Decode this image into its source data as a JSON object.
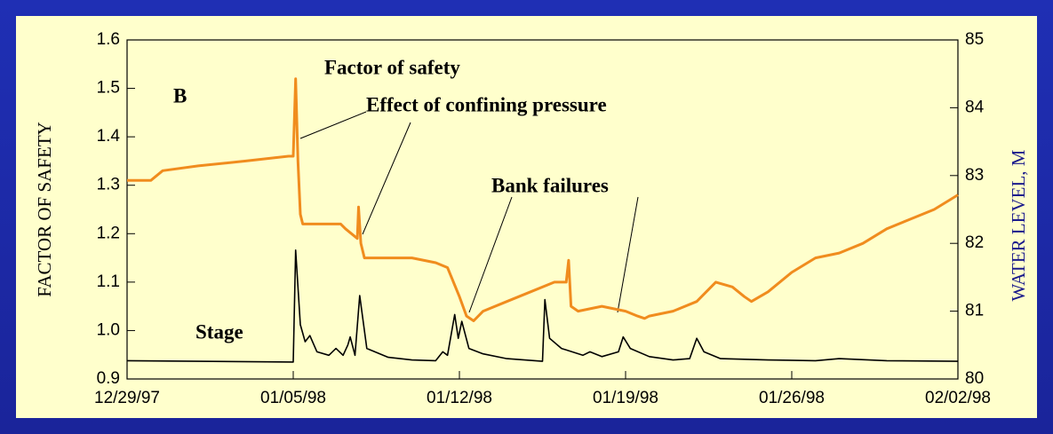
{
  "chart_data": {
    "type": "line",
    "y_label": "FACTOR OF SAFETY",
    "y2_label": "WATER LEVEL, M",
    "annotations": [
      "B",
      "Factor of safety",
      "Effect of confining pressure",
      "Bank failures",
      "Stage"
    ],
    "xlim": [
      0,
      35
    ],
    "xticks": [
      {
        "value": 0,
        "label": "12/29/97"
      },
      {
        "value": 7,
        "label": "01/05/98"
      },
      {
        "value": 14,
        "label": "01/12/98"
      },
      {
        "value": 21,
        "label": "01/19/98"
      },
      {
        "value": 28,
        "label": "01/26/98"
      },
      {
        "value": 35,
        "label": "02/02/98"
      }
    ],
    "ylim": [
      0.9,
      1.6
    ],
    "yticks": [
      {
        "value": 0.9,
        "label": "0.9"
      },
      {
        "value": 1.0,
        "label": "1.0"
      },
      1.1,
      1.2,
      1.3,
      1.4,
      1.5,
      1.6
    ],
    "y2lim": [
      80,
      85
    ],
    "y2ticks": [
      80,
      81,
      82,
      83,
      84,
      85
    ],
    "series": [
      {
        "name": "Factor of safety",
        "color": "#f08c1e",
        "x": [
          0,
          1,
          1.5,
          3,
          5,
          6.8,
          7.0,
          7.1,
          7.2,
          7.3,
          7.4,
          9,
          9.2,
          9.7,
          9.75,
          9.85,
          10,
          12,
          13,
          13.5,
          14.0,
          14.3,
          14.6,
          15,
          16,
          17,
          18,
          18.5,
          18.6,
          18.7,
          19,
          20,
          21,
          21.5,
          21.8,
          22,
          23,
          24,
          24.8,
          25.5,
          26,
          26.3,
          27,
          28,
          29,
          30,
          31,
          32,
          33,
          34,
          35
        ],
        "values": [
          1.31,
          1.31,
          1.33,
          1.34,
          1.35,
          1.36,
          1.36,
          1.52,
          1.35,
          1.24,
          1.22,
          1.22,
          1.21,
          1.19,
          1.255,
          1.18,
          1.15,
          1.15,
          1.14,
          1.13,
          1.07,
          1.03,
          1.02,
          1.04,
          1.06,
          1.08,
          1.1,
          1.1,
          1.145,
          1.05,
          1.04,
          1.05,
          1.04,
          1.03,
          1.025,
          1.03,
          1.04,
          1.06,
          1.1,
          1.09,
          1.07,
          1.06,
          1.08,
          1.12,
          1.15,
          1.16,
          1.18,
          1.21,
          1.23,
          1.25,
          1.28
        ]
      },
      {
        "name": "Stage",
        "color": "#000000",
        "axis": "y2",
        "x": [
          0,
          7,
          7.1,
          7.3,
          7.5,
          7.7,
          8,
          8.5,
          8.8,
          9.1,
          9.3,
          9.4,
          9.6,
          9.8,
          10.1,
          11,
          12,
          13,
          13.3,
          13.5,
          13.8,
          13.95,
          14.1,
          14.4,
          15,
          16,
          17.5,
          17.6,
          17.8,
          18.3,
          19.2,
          19.5,
          20,
          20.7,
          20.9,
          21.2,
          22,
          23,
          23.7,
          24,
          24.3,
          25,
          27,
          29,
          30,
          32,
          35
        ],
        "values": [
          80.27,
          80.25,
          81.9,
          80.8,
          80.55,
          80.64,
          80.4,
          80.35,
          80.45,
          80.35,
          80.5,
          80.62,
          80.35,
          81.23,
          80.45,
          80.32,
          80.28,
          80.27,
          80.4,
          80.35,
          80.95,
          80.6,
          80.85,
          80.45,
          80.37,
          80.3,
          80.26,
          81.17,
          80.6,
          80.45,
          80.35,
          80.4,
          80.33,
          80.4,
          80.62,
          80.45,
          80.33,
          80.28,
          80.3,
          80.6,
          80.4,
          80.3,
          80.28,
          80.27,
          80.3,
          80.27,
          80.26
        ]
      }
    ]
  }
}
